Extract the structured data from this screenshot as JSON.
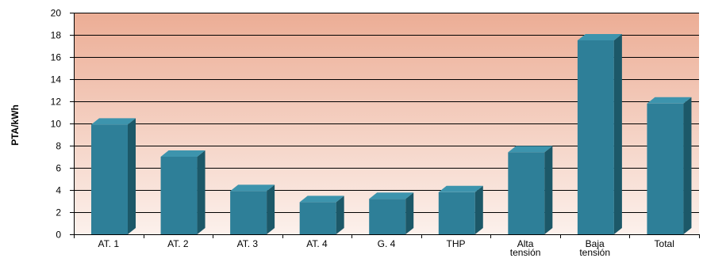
{
  "chart_data": {
    "type": "bar",
    "title": "",
    "xlabel": "",
    "ylabel": "PTA/kWh",
    "ylim": [
      0,
      20
    ],
    "yticks": [
      0,
      2,
      4,
      6,
      8,
      10,
      12,
      14,
      16,
      18,
      20
    ],
    "grid": true,
    "legend": "none",
    "categories": [
      [
        "AT. 1"
      ],
      [
        "AT. 2"
      ],
      [
        "AT. 3"
      ],
      [
        "AT. 4"
      ],
      [
        "G. 4"
      ],
      [
        "THP"
      ],
      [
        "Alta",
        "tensión"
      ],
      [
        "Baja",
        "tensión"
      ],
      [
        "Total"
      ]
    ],
    "values": [
      9.9,
      7.0,
      3.9,
      2.9,
      3.2,
      3.8,
      7.4,
      17.5,
      11.8
    ],
    "colors": {
      "bar_front": "#2e7f98",
      "bar_side": "#1c5868",
      "bar_top": "#3d94ad",
      "background_top": "#ecad95",
      "background_bottom": "#fcf1ec"
    }
  }
}
